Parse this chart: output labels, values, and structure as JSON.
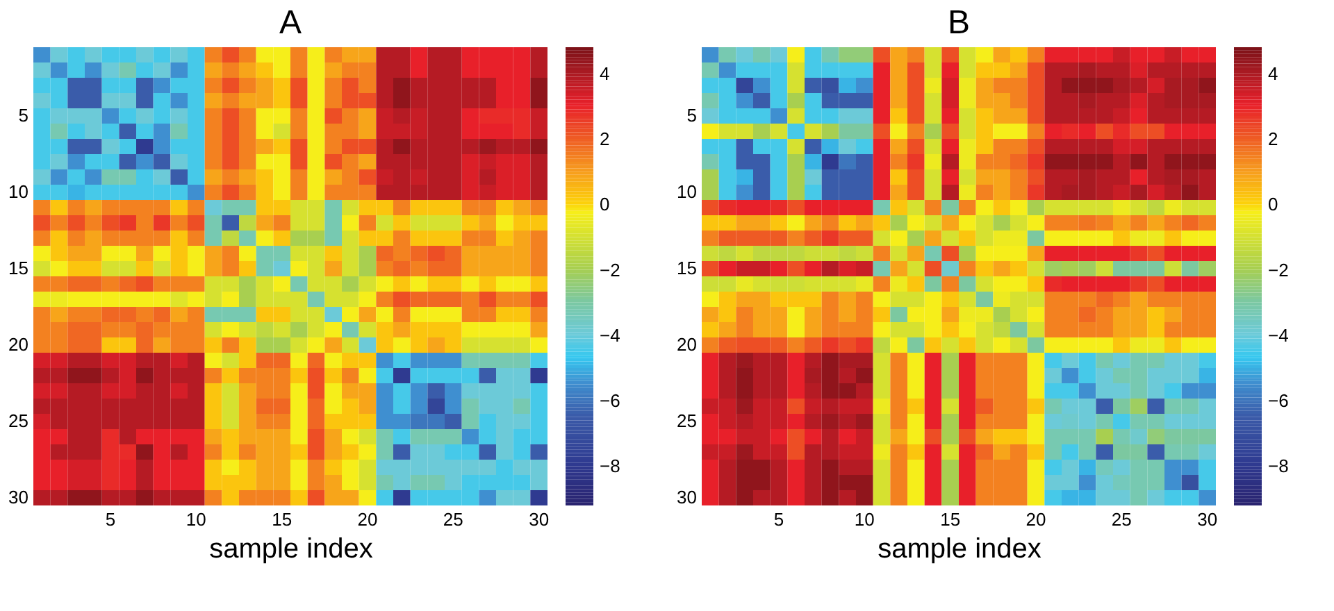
{
  "chart_data": [
    {
      "type": "heatmap",
      "title": "A",
      "xlabel": "sample index",
      "categories": [
        null,
        null,
        null,
        null,
        "5",
        null,
        null,
        null,
        null,
        "10",
        null,
        null,
        null,
        null,
        "15",
        null,
        null,
        null,
        null,
        "20",
        null,
        null,
        null,
        null,
        "25",
        null,
        null,
        null,
        null,
        "30"
      ],
      "y_categories": [
        null,
        null,
        null,
        null,
        "5",
        null,
        null,
        null,
        null,
        "10",
        null,
        null,
        null,
        null,
        "15",
        null,
        null,
        null,
        null,
        "20",
        null,
        null,
        null,
        null,
        "25",
        null,
        null,
        null,
        null,
        "30"
      ],
      "clim": [
        -9.2,
        4.8
      ],
      "cticks": [
        -8,
        -6,
        -4,
        -2,
        0,
        2,
        4
      ],
      "cells": [
        [
          -5.5,
          -4,
          -4.5,
          -4,
          -4.5,
          -4.5,
          -4,
          -4.5,
          -4,
          -4.5,
          1.4,
          2.2,
          1.4,
          -0.3,
          -0.3,
          1.4,
          -0.3,
          1.4,
          0.8,
          0.8,
          3.8,
          3.8,
          3,
          3.8,
          3.8,
          3,
          3,
          3,
          3,
          3.8
        ],
        [
          -4,
          -5.5,
          -4.5,
          -5.5,
          -4,
          -3.3,
          -4.5,
          -4,
          -5.5,
          -4.5,
          0.8,
          1.4,
          0.8,
          0.2,
          -0.3,
          1.4,
          -0.3,
          0.8,
          1.4,
          1.4,
          3.8,
          3.8,
          3,
          3.8,
          3.8,
          3,
          3,
          3,
          3,
          3.8
        ],
        [
          -4.5,
          -4.5,
          -6.5,
          -6.5,
          -4.5,
          -4.5,
          -6.5,
          -5.5,
          -4.5,
          -4.5,
          1.4,
          2.2,
          1.4,
          0.8,
          0.2,
          2.2,
          -0.3,
          1.4,
          2.2,
          1.4,
          3.8,
          4.4,
          3.8,
          3.8,
          3.8,
          3.8,
          3.8,
          3,
          3,
          4.4
        ],
        [
          -4,
          -4.5,
          -6.5,
          -6.5,
          -4,
          -4,
          -6.5,
          -4.5,
          -5.5,
          -4.5,
          0.8,
          1.4,
          0.8,
          0.8,
          0.2,
          2.2,
          -0.3,
          1.4,
          2.2,
          2.2,
          3.8,
          4.4,
          3.8,
          3.8,
          3.8,
          3.8,
          3.8,
          3,
          3,
          4.4
        ],
        [
          -4.5,
          -4,
          -4,
          -4,
          -5.5,
          -4.5,
          -4,
          -4.5,
          -4,
          -4.5,
          1.4,
          2.2,
          1.4,
          -0.3,
          -0.3,
          1.4,
          -0.3,
          2.2,
          1.4,
          0.8,
          3.5,
          3.8,
          3.5,
          3.8,
          3.8,
          3,
          2.8,
          2.8,
          2.8,
          3.5
        ],
        [
          -4.5,
          -3.3,
          -4.5,
          -4,
          -4.5,
          -6.5,
          -4.5,
          -5.5,
          -3.3,
          -4.5,
          1.4,
          2.2,
          1.4,
          -0.3,
          -1,
          1.4,
          -0.3,
          1.4,
          1.4,
          0.8,
          3.5,
          3.5,
          3.5,
          3.8,
          3.8,
          3,
          3,
          3,
          2.8,
          3.5
        ],
        [
          -4.5,
          -4.5,
          -6.5,
          -6.5,
          -4,
          -4.5,
          -8,
          -5.5,
          -4.5,
          -4.5,
          1.4,
          2.2,
          1.4,
          0.8,
          0.2,
          2.2,
          -0.3,
          1.4,
          2.2,
          2.2,
          3.8,
          4.4,
          3.8,
          3.8,
          3.8,
          3.8,
          4.2,
          3.8,
          3.8,
          4.4
        ],
        [
          -4.5,
          -4,
          -5.5,
          -4.5,
          -4.5,
          -6.5,
          -5.5,
          -6.5,
          -4,
          -4.5,
          1.4,
          2.2,
          1.4,
          -0.3,
          -0.3,
          2.2,
          -0.3,
          2.2,
          1.4,
          0.8,
          3.8,
          3.8,
          3.8,
          3.8,
          3.8,
          3.2,
          3.5,
          3.2,
          3.2,
          3.8
        ],
        [
          -4,
          -5.5,
          -4.5,
          -5.5,
          -3.3,
          -3.3,
          -4.5,
          -4,
          -6.5,
          -4.5,
          0.8,
          1.4,
          0.8,
          0.2,
          -0.3,
          1.4,
          -0.3,
          0.8,
          1.4,
          2.2,
          3.5,
          3.8,
          3.5,
          3.8,
          3.8,
          3.2,
          3.8,
          3.2,
          3.2,
          3.8
        ],
        [
          -4.5,
          -4.5,
          -5,
          -4.5,
          -4.5,
          -4.5,
          -4.5,
          -4.5,
          -4.5,
          -5.5,
          1.4,
          2.2,
          1.4,
          0.2,
          -0.3,
          1.4,
          -0.3,
          1.4,
          1.4,
          1.4,
          3.8,
          3.8,
          3.8,
          3.8,
          3.8,
          3.2,
          3.5,
          3.2,
          3.2,
          3.8
        ],
        [
          1.4,
          0.2,
          1.4,
          0.8,
          1.4,
          1.4,
          1.4,
          1.4,
          0.2,
          1.4,
          -4,
          -3.3,
          -3.3,
          0.2,
          0.2,
          -1,
          -1,
          -3.3,
          -1,
          0.2,
          0.2,
          1.4,
          0.2,
          0.2,
          0.2,
          1.4,
          1.4,
          0.2,
          0.8,
          1.4
        ],
        [
          2.2,
          1.4,
          2.2,
          1.4,
          2.2,
          2.6,
          1.4,
          2.6,
          1.4,
          2.2,
          -3.3,
          -6.5,
          -1.5,
          0.8,
          1.4,
          -1,
          -1,
          -3.3,
          -0.3,
          1.4,
          -1,
          0.2,
          -1,
          -1,
          -1,
          0.2,
          0.8,
          -0.3,
          0.2,
          0.2
        ],
        [
          1.4,
          0.2,
          1.4,
          0.8,
          1.4,
          1.4,
          1.4,
          1.4,
          0.2,
          1.4,
          -3.3,
          -1.5,
          -3.3,
          -0.3,
          0.2,
          -2,
          -2,
          -3.3,
          -1,
          0.2,
          0.2,
          1.4,
          0.2,
          0.2,
          0.2,
          1.4,
          1.4,
          0.2,
          0.8,
          1.4
        ],
        [
          -0.3,
          0.2,
          0.8,
          0.8,
          -0.3,
          -0.3,
          0.8,
          -0.3,
          0.2,
          -0.3,
          0.8,
          1.4,
          -0.3,
          -3.3,
          -3.3,
          -1,
          -1,
          0.2,
          -1,
          -2,
          1.8,
          1.4,
          1.8,
          2.2,
          1.8,
          0.8,
          0.8,
          0.8,
          0.8,
          1.4
        ],
        [
          -1,
          -0.3,
          0.2,
          0.2,
          -1,
          -1,
          0.2,
          -1,
          0.2,
          -0.3,
          0.8,
          1.4,
          0.2,
          -3.3,
          -4,
          -0.3,
          -1,
          0.8,
          -1,
          -2,
          1.4,
          1.8,
          1.4,
          1.8,
          1.8,
          0.8,
          0.8,
          0.8,
          0.8,
          1.4
        ],
        [
          1.4,
          1.4,
          1.8,
          1.8,
          1.4,
          1.8,
          2.2,
          1.4,
          1.4,
          1.4,
          -1,
          -1,
          -2,
          -1,
          -0.3,
          -3.3,
          -1,
          -1,
          -2,
          -1,
          -0.3,
          0.2,
          -0.3,
          0.2,
          0.2,
          -0.3,
          0.2,
          -0.3,
          -0.3,
          0.2
        ],
        [
          -0.5,
          -0.5,
          -0.3,
          -0.3,
          -0.3,
          -0.3,
          -0.3,
          -0.3,
          -0.8,
          -0.3,
          -1,
          -0.3,
          -2,
          -1,
          -1,
          -1,
          -3.3,
          -1,
          -1,
          -0.3,
          1.4,
          2.2,
          1.8,
          1.8,
          1.8,
          1.4,
          2.2,
          1.4,
          1.4,
          2.2
        ],
        [
          1.4,
          0.8,
          1.4,
          1.4,
          1.8,
          1.8,
          1.4,
          1.8,
          0.8,
          1.4,
          -3.3,
          -3.3,
          -3.3,
          0.2,
          0.2,
          -1,
          -1,
          -4,
          -0.3,
          0.8,
          -0.3,
          1.4,
          -0.3,
          -0.3,
          -0.3,
          1.4,
          1.4,
          0.2,
          0.2,
          1.4
        ],
        [
          1.4,
          1.4,
          1.8,
          1.8,
          1.4,
          1.4,
          1.8,
          1.4,
          1.4,
          1.4,
          -1,
          -0.3,
          -1,
          -1.5,
          -1,
          -2,
          -1,
          -0.3,
          -3.3,
          -1,
          0.2,
          0.8,
          0.2,
          0.2,
          0.2,
          -0.3,
          -0.3,
          -0.3,
          -0.3,
          0.8
        ],
        [
          1.4,
          1.4,
          1.8,
          1.8,
          0.2,
          0.2,
          1.8,
          0.8,
          1.4,
          1.4,
          0.2,
          1.4,
          0.2,
          -2,
          -2,
          -1,
          -0.3,
          0.8,
          -1,
          -4,
          0.2,
          -0.3,
          0.2,
          0.8,
          0.2,
          -1,
          -1,
          -1,
          -1,
          -0.3
        ],
        [
          3.3,
          3.3,
          3.8,
          3.8,
          3.3,
          3.3,
          3.8,
          3.8,
          3.3,
          3.8,
          -0.3,
          -1,
          0.2,
          1.8,
          1.8,
          -0.3,
          1.8,
          -0.3,
          0.2,
          0.2,
          -5.5,
          -4.5,
          -5.5,
          -5.5,
          -5.5,
          -3.3,
          -3.3,
          -3.3,
          -3.3,
          -4.5
        ],
        [
          3.8,
          3.8,
          4.4,
          4.4,
          3.8,
          3.3,
          4.4,
          3.8,
          3.8,
          3.8,
          1.4,
          0.2,
          1.4,
          1.4,
          1.4,
          0.2,
          2.2,
          0.2,
          1.4,
          -0.3,
          -4.5,
          -8,
          -4.5,
          -4.5,
          -4.5,
          -4.5,
          -6.5,
          -4,
          -4,
          -8
        ],
        [
          3.3,
          3.3,
          3.8,
          3.8,
          3.3,
          3.3,
          3.8,
          3.8,
          3.3,
          3.8,
          0.2,
          -1,
          0.8,
          1.4,
          1.4,
          -0.3,
          2.2,
          -0.3,
          0.8,
          0.8,
          -5.5,
          -4.5,
          -5.5,
          -6.5,
          -5.5,
          -4,
          -4,
          -4,
          -4,
          -4.5
        ],
        [
          3.8,
          3.8,
          3.8,
          3.8,
          3.8,
          3.8,
          3.8,
          3.8,
          3.8,
          3.8,
          0.2,
          -1,
          0.8,
          1.8,
          1.8,
          -0.3,
          1.8,
          -0.3,
          0.2,
          0.8,
          -5.5,
          -4.5,
          -5.5,
          -7.5,
          -5.5,
          -3.3,
          -4,
          -4,
          -3.3,
          -4.5
        ],
        [
          3.3,
          3.8,
          3.8,
          3.8,
          3.8,
          3.8,
          3.8,
          3.8,
          3.8,
          3.8,
          0.2,
          -1,
          0.8,
          1.4,
          1.4,
          -0.3,
          1.8,
          0.2,
          0.2,
          0.2,
          -5.5,
          -5.5,
          -6,
          -6,
          -6.5,
          -3.3,
          -4.5,
          -4,
          -4,
          -4.5
        ],
        [
          3,
          3,
          3.8,
          3.8,
          2.8,
          3.8,
          3,
          3,
          3,
          3,
          0.8,
          0.2,
          0.8,
          0.8,
          0.8,
          -0.3,
          2.2,
          0.8,
          -0.3,
          -1,
          -3.3,
          -4.5,
          -3.3,
          -3.3,
          -3.3,
          -5.5,
          -4.5,
          -4,
          -4.5,
          -4.5
        ],
        [
          3,
          3.8,
          3.8,
          3.8,
          2.8,
          2.8,
          4.4,
          3,
          3.8,
          3,
          1.4,
          0.2,
          1.4,
          0.8,
          0.8,
          0.2,
          2.2,
          0.8,
          0.2,
          -0.3,
          -3.3,
          -6.5,
          -4,
          -4,
          -4.5,
          -4.5,
          -6.5,
          -4,
          -4.5,
          -6.5
        ],
        [
          3,
          3,
          3.3,
          3.3,
          2.8,
          3,
          3.8,
          3,
          3,
          3,
          0.2,
          -0.3,
          0.2,
          0.8,
          0.8,
          -0.3,
          1.4,
          0.2,
          -0.3,
          -1,
          -4,
          -4,
          -4,
          -4,
          -4,
          -4,
          -4,
          -4.5,
          -4,
          -4
        ],
        [
          3,
          3,
          3.3,
          3.3,
          2.8,
          3,
          3.8,
          3,
          3,
          3,
          0.2,
          0.2,
          0.2,
          0.8,
          0.8,
          -0.3,
          1.4,
          0.8,
          -0.3,
          -1,
          -3.3,
          -4,
          -3.3,
          -3.3,
          -4,
          -4.5,
          -4.5,
          -4.5,
          -4.5,
          -4
        ],
        [
          3.8,
          3.8,
          4.4,
          4.4,
          3.8,
          3.8,
          4.4,
          3.8,
          3.8,
          3.8,
          1.4,
          0.2,
          1.4,
          1.4,
          1.4,
          0.2,
          2.2,
          0.8,
          0.8,
          -0.3,
          -4.5,
          -8,
          -4.5,
          -4.5,
          -4.5,
          -4.5,
          -5.5,
          -4,
          -4,
          -8
        ]
      ]
    },
    {
      "type": "heatmap",
      "title": "B",
      "xlabel": "sample index",
      "categories": [
        null,
        null,
        null,
        null,
        "5",
        null,
        null,
        null,
        null,
        "10",
        null,
        null,
        null,
        null,
        "15",
        null,
        null,
        null,
        null,
        "20",
        null,
        null,
        null,
        null,
        "25",
        null,
        null,
        null,
        null,
        "30"
      ],
      "y_categories": [
        null,
        null,
        null,
        null,
        "5",
        null,
        null,
        null,
        null,
        "10",
        null,
        null,
        null,
        null,
        "15",
        null,
        null,
        null,
        null,
        "20",
        null,
        null,
        null,
        null,
        "25",
        null,
        null,
        null,
        null,
        "30"
      ],
      "clim": [
        -9.2,
        4.8
      ],
      "cticks": [
        -8,
        -6,
        -4,
        -2,
        0,
        2,
        4
      ],
      "cells": [
        [
          -5.5,
          -3.3,
          -4,
          -3.3,
          -4,
          -0.3,
          -4.5,
          -3.3,
          -2.5,
          -2.5,
          2.2,
          0.8,
          1.4,
          -1,
          2.2,
          -1,
          -0.3,
          0.8,
          0.2,
          1.4,
          3,
          3,
          3,
          3,
          3.5,
          3,
          3,
          3.5,
          3,
          3
        ],
        [
          -3.3,
          -5.5,
          -4.5,
          -4.5,
          -4.5,
          -1,
          -4.5,
          -4.5,
          -4.5,
          -4.5,
          3,
          0.8,
          2.2,
          -1,
          3,
          -1,
          0.2,
          0.2,
          0.8,
          2.2,
          3.8,
          3.8,
          4,
          3.8,
          3.8,
          3.2,
          3.8,
          3.8,
          3.8,
          3.8
        ],
        [
          -4.5,
          -4.5,
          -7.5,
          -5.5,
          -4.5,
          -1,
          -6.5,
          -7,
          -5,
          -5.5,
          3,
          0.8,
          2.2,
          -0.5,
          3.3,
          -0.5,
          0.8,
          1.4,
          1.4,
          2.2,
          3.8,
          4.4,
          4.4,
          4.4,
          4,
          3.8,
          3.3,
          4,
          4,
          4.4
        ],
        [
          -3.3,
          -4.5,
          -5.5,
          -6.5,
          -4.5,
          -2,
          -4.5,
          -6.5,
          -6.5,
          -6.5,
          3,
          0.8,
          2.2,
          -1,
          3.3,
          -0.5,
          0.8,
          0.8,
          1.4,
          2.2,
          3.8,
          3.8,
          4,
          3.8,
          3.8,
          3.2,
          3.8,
          4,
          4,
          4
        ],
        [
          -4,
          -4.5,
          -4.5,
          -4.5,
          -5.5,
          -1,
          -4.5,
          -4.5,
          -4,
          -4,
          3,
          0.2,
          2.2,
          -1,
          3,
          -1,
          0.2,
          0.8,
          0.8,
          2.2,
          3.8,
          3.8,
          3.8,
          3.8,
          3.5,
          3,
          3.8,
          3.8,
          3.8,
          3.8
        ],
        [
          -0.3,
          -1,
          -1,
          -2,
          -1,
          -4.5,
          -1,
          -2,
          -3,
          -3,
          2.2,
          -0.3,
          1.4,
          -2,
          2.2,
          -1,
          0.2,
          -0.3,
          -0.3,
          1.4,
          3,
          2.8,
          3,
          2.2,
          2.8,
          2.2,
          2.2,
          3,
          3,
          3
        ],
        [
          -4.5,
          -4.5,
          -6.5,
          -4.5,
          -4.5,
          -1,
          -6.5,
          -5,
          -4,
          -4.5,
          3,
          0.8,
          2.2,
          -1,
          3,
          -0.5,
          0.2,
          1.4,
          1.4,
          2.2,
          3.8,
          3.8,
          3.8,
          3.8,
          3.3,
          3.3,
          3.8,
          3.8,
          3.8,
          3.8
        ],
        [
          -3.3,
          -4.5,
          -6.5,
          -6.5,
          -4.5,
          -2,
          -5,
          -8,
          -6,
          -6.5,
          3,
          1.4,
          2.6,
          -0.5,
          3.8,
          -0.5,
          1.4,
          1.4,
          1.8,
          2.6,
          4.4,
          4.4,
          4.4,
          4.4,
          3.8,
          4.4,
          3.8,
          4.4,
          4.4,
          4.4
        ],
        [
          -2,
          -4.5,
          -5,
          -6.5,
          -4.5,
          -2,
          -4,
          -6.5,
          -6.5,
          -6.5,
          3,
          0.2,
          2.2,
          -1,
          3,
          -1,
          0.8,
          0.8,
          1.4,
          2.2,
          3.8,
          3.8,
          4,
          3.8,
          3.8,
          3,
          3.8,
          4,
          4,
          3.8
        ],
        [
          -2,
          -4.5,
          -5.5,
          -6.5,
          -4.5,
          -2,
          -4.5,
          -6.5,
          -6.5,
          -6.5,
          3,
          0.8,
          2.2,
          -1,
          3.8,
          -0.5,
          1.4,
          0.8,
          1.4,
          2.6,
          3.8,
          4,
          4,
          3.8,
          3.5,
          4,
          3.3,
          3.8,
          4.4,
          3.8
        ],
        [
          2.2,
          2.8,
          3,
          3,
          2.8,
          2.2,
          3,
          3,
          3,
          3,
          -3.3,
          0.2,
          -1,
          1.4,
          -3,
          1.4,
          -0.3,
          0.2,
          -0.3,
          -2,
          -1,
          -1,
          -1,
          -1,
          -0.5,
          -1,
          -1.5,
          -0.5,
          -1,
          -1
        ],
        [
          0.2,
          0.2,
          0.8,
          0.8,
          0.2,
          -0.3,
          0.8,
          1.4,
          0.2,
          0.8,
          0.2,
          -2,
          -0.3,
          -1,
          0.8,
          -0.3,
          -1,
          -2,
          -1,
          -0.3,
          1.4,
          1.4,
          1.6,
          1.4,
          0.8,
          1.4,
          0.8,
          1.4,
          1.8,
          1.4
        ],
        [
          1.4,
          2,
          2,
          2,
          2,
          1.4,
          2,
          2.6,
          2,
          2,
          -1,
          -0.3,
          -2,
          0.8,
          -1,
          0.2,
          -1,
          -0.5,
          -0.5,
          -3,
          -0.3,
          -0.3,
          -0.3,
          -0.3,
          0.2,
          -0.5,
          -0.5,
          0.2,
          -0.3,
          -0.3
        ],
        [
          -1.2,
          -1.5,
          -1,
          -1.5,
          -1.5,
          -1.5,
          -1.2,
          -1.2,
          -1.5,
          -1.2,
          1.4,
          -1,
          0.8,
          -3.3,
          2.2,
          -2,
          -0.3,
          -0.3,
          -0.3,
          0.8,
          3,
          3,
          3,
          3,
          3,
          2.6,
          2.2,
          3,
          3,
          3
        ],
        [
          2.2,
          3,
          3.5,
          3.5,
          3,
          2.2,
          3,
          3.8,
          3.2,
          3.5,
          -3.3,
          0.8,
          -1,
          2.2,
          -3.8,
          1.4,
          0.2,
          0.8,
          0.2,
          -1,
          -2.2,
          -2,
          -2.2,
          -1.2,
          -3,
          -3,
          -3,
          -1.2,
          -3,
          -2.2
        ],
        [
          -1.2,
          -1.2,
          -0.6,
          -1,
          -1.2,
          -1.2,
          -1,
          -1,
          -1,
          -0.6,
          1.4,
          -0.5,
          0.2,
          -3,
          1.4,
          -3,
          -1,
          -0.3,
          -0.3,
          0.2,
          2.8,
          3,
          3,
          3,
          3,
          2.6,
          2.2,
          3,
          3,
          3
        ],
        [
          -0.3,
          0.2,
          0.8,
          0.8,
          0.2,
          0.2,
          0.2,
          1.4,
          0.8,
          1.4,
          -0.3,
          -1,
          -1,
          -0.3,
          0.2,
          -1,
          -3,
          -0.5,
          -1,
          -1,
          1.4,
          1.4,
          1.4,
          1.8,
          1.4,
          0.8,
          1.4,
          1.4,
          1.4,
          1.4
        ],
        [
          0.8,
          0.2,
          1.4,
          0.8,
          0.8,
          -0.3,
          0.8,
          1.4,
          0.8,
          1.4,
          0.2,
          -3,
          -0.3,
          -0.3,
          0.8,
          -0.5,
          -0.5,
          -2,
          -1,
          -0.3,
          1.4,
          1.4,
          1.8,
          1.4,
          0.8,
          0.8,
          0.2,
          0.8,
          1.4,
          1.4
        ],
        [
          0.2,
          0.8,
          1.4,
          0.8,
          0.8,
          -0.3,
          0.8,
          1.4,
          1.4,
          1.4,
          -0.3,
          -1,
          -1,
          -0.3,
          0.2,
          -0.3,
          -1,
          -1.5,
          -3,
          -1,
          1.4,
          1.4,
          1.4,
          1.4,
          0.8,
          0.8,
          0.2,
          1.4,
          1.4,
          1.4
        ],
        [
          1.4,
          2,
          2.2,
          2.2,
          2,
          1.4,
          2,
          2.6,
          2.2,
          2.6,
          -1.5,
          -0.3,
          -3,
          0.2,
          -1,
          0.2,
          -1,
          -0.3,
          -1,
          -3,
          -0.3,
          -0.3,
          -0.3,
          -0.3,
          0.2,
          -0.5,
          -0.5,
          0.2,
          -0.3,
          -0.3
        ],
        [
          3,
          3.8,
          4.2,
          3.8,
          3.8,
          3,
          3.8,
          4.4,
          4,
          4,
          -1,
          1.4,
          -0.3,
          3,
          -2,
          3,
          1.4,
          1.4,
          1.4,
          -0.3,
          -4.5,
          -4,
          -4.5,
          -3.3,
          -4,
          -3.3,
          -3.3,
          -4,
          -4,
          -4.5
        ],
        [
          3,
          3.8,
          4.4,
          3.8,
          3.8,
          3,
          4,
          4.4,
          3.8,
          4.4,
          -1,
          1.4,
          -0.3,
          3,
          -2,
          3,
          1.4,
          1.4,
          1.4,
          -0.3,
          -4,
          -5.5,
          -4.5,
          -4,
          -3.3,
          -3.3,
          -4,
          -4,
          -4,
          -5
        ],
        [
          3,
          3.8,
          4.4,
          3.8,
          3.8,
          3,
          3.8,
          4.4,
          4.4,
          3.8,
          -1,
          1.4,
          -0.3,
          3,
          -2,
          3,
          1.4,
          1.4,
          1.4,
          -0.3,
          -4.5,
          -4.5,
          -5.5,
          -4,
          -4,
          -3.3,
          -4,
          -4.5,
          -5.5,
          -5.5
        ],
        [
          3.5,
          3.5,
          4.2,
          3.5,
          3.5,
          2.2,
          3.5,
          3.8,
          3.5,
          3.5,
          -0.5,
          1.4,
          0.2,
          3,
          -1,
          3,
          2,
          1.4,
          1.4,
          0.2,
          -3.3,
          -4,
          -4,
          -6.5,
          -3,
          -2.2,
          -6.5,
          -3.3,
          -3.3,
          -4
        ],
        [
          3,
          3.5,
          3.8,
          3.5,
          3.5,
          3,
          3.8,
          4.2,
          3.8,
          4.2,
          -1,
          1.4,
          -0.3,
          3,
          -2,
          3,
          1.4,
          1.4,
          1.4,
          -0.3,
          -4,
          -3.8,
          -4,
          -3.3,
          -4.5,
          -3.3,
          -3.3,
          -4,
          -4,
          -4
        ],
        [
          3,
          3,
          3.5,
          3.5,
          3,
          2.2,
          3,
          3.8,
          3,
          3.5,
          -1,
          0.8,
          -0.3,
          2.2,
          -2,
          2.2,
          0.8,
          0.2,
          0.2,
          -0.3,
          -3.3,
          -3.3,
          -3.3,
          -2,
          -3.3,
          -3.8,
          -2.5,
          -3,
          -3,
          -3
        ],
        [
          3.5,
          3.5,
          4.2,
          3.5,
          3.5,
          2.2,
          3.8,
          3.8,
          3.5,
          3.5,
          -0.5,
          1.4,
          0.2,
          3,
          -1,
          3,
          1.8,
          0.8,
          1.4,
          0.2,
          -3.3,
          -4.5,
          -3.3,
          -6.5,
          -3,
          -3,
          -6.5,
          -3.3,
          -3.3,
          -4
        ],
        [
          3,
          3.8,
          4.4,
          4.4,
          3.8,
          3,
          3.8,
          4.4,
          3.8,
          3.8,
          -1,
          1.4,
          -0.3,
          3,
          -2,
          3,
          1.4,
          1.4,
          1.4,
          -0.3,
          -4.5,
          -4,
          -5,
          -3.5,
          -4,
          -3.3,
          -3.3,
          -5.5,
          -5.5,
          -4.5
        ],
        [
          3,
          3.8,
          4.4,
          4.4,
          3.8,
          3,
          3.8,
          4.4,
          4.4,
          4.4,
          -1,
          1.4,
          -0.3,
          3,
          -2,
          3,
          1.4,
          1.4,
          1.4,
          -0.3,
          -4,
          -4,
          -5.5,
          -4,
          -3.5,
          -3.3,
          -3.3,
          -5.5,
          -7,
          -4.5
        ],
        [
          3,
          3.8,
          4.4,
          3.8,
          3.8,
          3,
          3.8,
          4.4,
          3.8,
          4.4,
          -1,
          1.4,
          -0.3,
          3,
          -2,
          3,
          1.4,
          1.4,
          1.4,
          -0.3,
          -4.5,
          -5,
          -5,
          -4,
          -4,
          -3.3,
          -4,
          -4.5,
          -4.5,
          -5.5
        ]
      ]
    }
  ]
}
